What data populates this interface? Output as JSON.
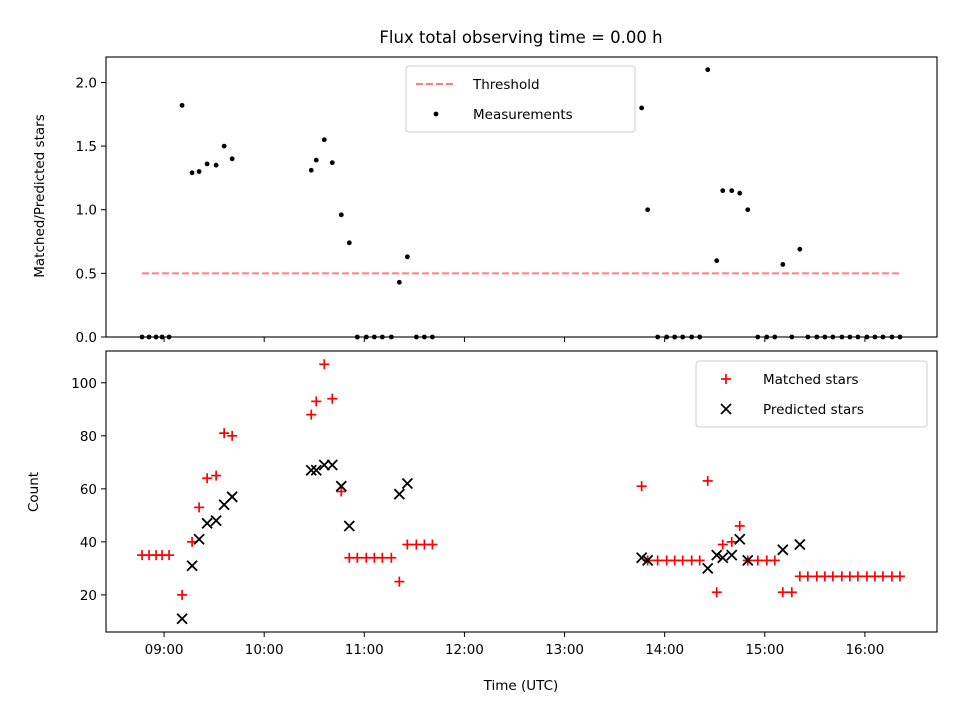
{
  "chart_data": [
    {
      "type": "scatter",
      "title": "Flux total observing time = 0.00 h",
      "xlabel": "",
      "ylabel": "Matched/Predicted stars",
      "xlim": [
        8.42,
        16.72
      ],
      "ylim": [
        0.0,
        2.2
      ],
      "x_ticks": [
        9,
        10,
        11,
        12,
        13,
        14,
        15,
        16
      ],
      "x_tick_labels": [],
      "y_ticks": [
        0.0,
        0.5,
        1.0,
        1.5,
        2.0
      ],
      "y_tick_labels": [
        "0.0",
        "0.5",
        "1.0",
        "1.5",
        "2.0"
      ],
      "legend_position": "top-center",
      "series": [
        {
          "name": "Threshold",
          "kind": "dashed-line",
          "color": "#ff7f7f",
          "x": [
            8.78,
            16.37
          ],
          "y": [
            0.5,
            0.5
          ]
        },
        {
          "name": "Measurements",
          "kind": "dot",
          "color": "#000000",
          "x": [
            8.78,
            8.85,
            8.92,
            8.98,
            9.05,
            9.18,
            9.28,
            9.35,
            9.43,
            9.52,
            9.6,
            9.68,
            10.47,
            10.52,
            10.6,
            10.68,
            10.77,
            10.85,
            10.93,
            11.02,
            11.1,
            11.18,
            11.27,
            11.35,
            11.43,
            11.52,
            11.6,
            11.68,
            13.77,
            13.83,
            13.93,
            14.02,
            14.1,
            14.18,
            14.27,
            14.35,
            14.43,
            14.52,
            14.58,
            14.67,
            14.75,
            14.83,
            14.93,
            15.02,
            15.1,
            15.18,
            15.27,
            15.35,
            15.43,
            15.52,
            15.6,
            15.68,
            15.77,
            15.85,
            15.93,
            16.02,
            16.1,
            16.18,
            16.27,
            16.35
          ],
          "y": [
            0.0,
            0.0,
            0.0,
            0.0,
            0.0,
            1.82,
            1.29,
            1.3,
            1.36,
            1.35,
            1.5,
            1.4,
            1.31,
            1.39,
            1.55,
            1.37,
            0.96,
            0.74,
            0.0,
            0.0,
            0.0,
            0.0,
            0.0,
            0.43,
            0.63,
            0.0,
            0.0,
            0.0,
            1.8,
            1.0,
            0.0,
            0.0,
            0.0,
            0.0,
            0.0,
            0.0,
            2.1,
            0.6,
            1.15,
            1.15,
            1.13,
            1.0,
            0.0,
            0.0,
            0.0,
            0.57,
            0.0,
            0.69,
            0.0,
            0.0,
            0.0,
            0.0,
            0.0,
            0.0,
            0.0,
            0.0,
            0.0,
            0.0,
            0.0,
            0.0
          ]
        }
      ]
    },
    {
      "type": "scatter",
      "title": "",
      "xlabel": "Time (UTC)",
      "ylabel": "Count",
      "xlim": [
        8.42,
        16.72
      ],
      "ylim": [
        6,
        112
      ],
      "x_ticks": [
        9,
        10,
        11,
        12,
        13,
        14,
        15,
        16
      ],
      "x_tick_labels": [
        "09:00",
        "10:00",
        "11:00",
        "12:00",
        "13:00",
        "14:00",
        "15:00",
        "16:00"
      ],
      "y_ticks": [
        20,
        40,
        60,
        80,
        100
      ],
      "y_tick_labels": [
        "20",
        "40",
        "60",
        "80",
        "100"
      ],
      "legend_position": "top-right",
      "series": [
        {
          "name": "Matched stars",
          "kind": "plus",
          "color": "#ff0000",
          "x": [
            8.78,
            8.85,
            8.92,
            8.98,
            9.05,
            9.18,
            9.28,
            9.35,
            9.43,
            9.52,
            9.6,
            9.68,
            10.47,
            10.52,
            10.6,
            10.68,
            10.77,
            10.85,
            10.93,
            11.02,
            11.1,
            11.18,
            11.27,
            11.35,
            11.43,
            11.52,
            11.6,
            11.68,
            13.77,
            13.83,
            13.93,
            14.02,
            14.1,
            14.18,
            14.27,
            14.35,
            14.43,
            14.52,
            14.58,
            14.67,
            14.75,
            14.83,
            14.93,
            15.02,
            15.1,
            15.18,
            15.27,
            15.35,
            15.43,
            15.52,
            15.6,
            15.68,
            15.77,
            15.85,
            15.93,
            16.02,
            16.1,
            16.18,
            16.27,
            16.35
          ],
          "y": [
            35,
            35,
            35,
            35,
            35,
            20,
            40,
            53,
            64,
            65,
            81,
            80,
            88,
            93,
            107,
            94,
            59,
            34,
            34,
            34,
            34,
            34,
            34,
            25,
            39,
            39,
            39,
            39,
            61,
            33,
            33,
            33,
            33,
            33,
            33,
            33,
            63,
            21,
            39,
            40,
            46,
            33,
            33,
            33,
            33,
            21,
            21,
            27,
            27,
            27,
            27,
            27,
            27,
            27,
            27,
            27,
            27,
            27,
            27,
            27
          ]
        },
        {
          "name": "Predicted stars",
          "kind": "x",
          "color": "#000000",
          "x": [
            9.18,
            9.28,
            9.35,
            9.43,
            9.52,
            9.6,
            9.68,
            10.47,
            10.52,
            10.6,
            10.68,
            10.77,
            10.85,
            11.35,
            11.43,
            13.77,
            13.83,
            14.43,
            14.52,
            14.58,
            14.67,
            14.75,
            14.83,
            15.18,
            15.35
          ],
          "y": [
            11,
            31,
            41,
            47,
            48,
            54,
            57,
            67,
            67,
            69,
            69,
            61,
            46,
            58,
            62,
            34,
            33,
            30,
            35,
            34,
            35,
            41,
            33,
            37,
            39
          ]
        }
      ]
    }
  ]
}
